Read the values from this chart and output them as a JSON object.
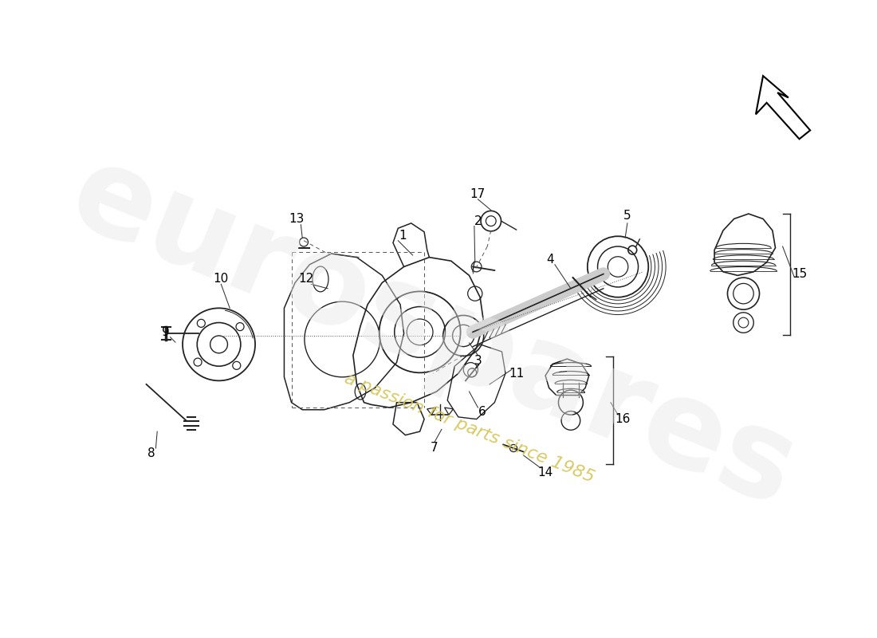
{
  "bg_color": "#ffffff",
  "watermark_text1": "eurospares",
  "watermark_text2": "a passion for parts since 1985",
  "label_color": "#000000",
  "watermark_color1": "#e8e8e8",
  "watermark_color2": "#d4c455",
  "line_color": "#222222",
  "part_draw_color": "#222222",
  "label_fontsize": 11
}
